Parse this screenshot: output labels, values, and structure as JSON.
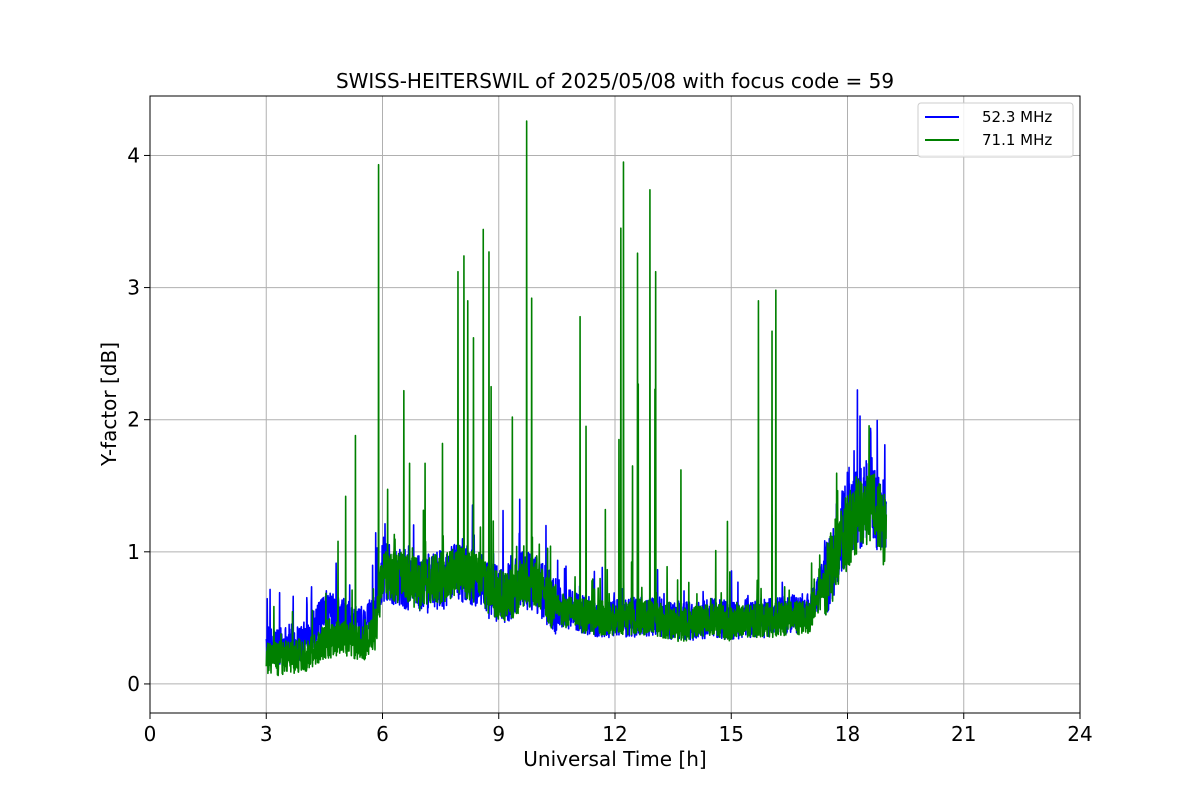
{
  "chart_data": {
    "type": "line",
    "title": "SWISS-HEITERSWIL of 2025/05/08 with focus code = 59",
    "xlabel": "Universal Time [h]",
    "ylabel": "Y-factor [dB]",
    "xlim": [
      0,
      24
    ],
    "ylim": [
      -0.22,
      4.45
    ],
    "xticks": [
      0,
      3,
      6,
      9,
      12,
      15,
      18,
      21,
      24
    ],
    "xtick_labels": [
      "0",
      "3",
      "6",
      "9",
      "12",
      "15",
      "18",
      "21",
      "24"
    ],
    "yticks": [
      0,
      1,
      2,
      3,
      4
    ],
    "ytick_labels": [
      "0",
      "1",
      "2",
      "3",
      "4"
    ],
    "grid": true,
    "legend_position": "top-right",
    "series": [
      {
        "name": "52.3 MHz",
        "color": "#0000ff",
        "x": [
          3.0,
          3.5,
          4.0,
          4.3,
          4.6,
          5.0,
          5.5,
          5.8,
          6.0,
          6.5,
          7.0,
          7.5,
          8.0,
          8.5,
          8.8,
          9.2,
          9.6,
          10.0,
          10.4,
          11.0,
          11.5,
          12.0,
          12.5,
          13.0,
          13.5,
          14.0,
          14.5,
          15.0,
          15.5,
          16.0,
          16.5,
          17.0,
          17.4,
          17.8,
          18.2,
          18.6,
          19.0
        ],
        "y": [
          0.28,
          0.3,
          0.32,
          0.45,
          0.55,
          0.5,
          0.4,
          0.55,
          0.85,
          0.8,
          0.75,
          0.78,
          0.85,
          0.8,
          0.7,
          0.68,
          0.8,
          0.75,
          0.6,
          0.55,
          0.5,
          0.5,
          0.5,
          0.52,
          0.48,
          0.48,
          0.5,
          0.48,
          0.5,
          0.5,
          0.52,
          0.55,
          0.8,
          1.1,
          1.3,
          1.4,
          1.2
        ],
        "noise": 0.15
      },
      {
        "name": "71.1 MHz",
        "color": "#008000",
        "x": [
          3.0,
          3.5,
          4.0,
          4.3,
          4.6,
          5.0,
          5.5,
          5.8,
          6.0,
          6.5,
          7.0,
          7.5,
          8.0,
          8.5,
          8.8,
          9.2,
          9.6,
          10.0,
          10.4,
          11.0,
          11.5,
          12.0,
          12.5,
          13.0,
          13.5,
          14.0,
          14.5,
          15.0,
          15.5,
          16.0,
          16.5,
          17.0,
          17.4,
          17.8,
          18.2,
          18.6,
          19.0
        ],
        "y": [
          0.18,
          0.2,
          0.22,
          0.28,
          0.32,
          0.35,
          0.3,
          0.4,
          0.85,
          0.8,
          0.75,
          0.8,
          0.85,
          0.8,
          0.7,
          0.65,
          0.75,
          0.78,
          0.58,
          0.52,
          0.5,
          0.5,
          0.5,
          0.5,
          0.45,
          0.45,
          0.5,
          0.45,
          0.48,
          0.48,
          0.5,
          0.5,
          0.75,
          1.05,
          1.25,
          1.35,
          1.15
        ],
        "noise": 0.13,
        "spikes": [
          [
            4.85,
            1.08
          ],
          [
            5.05,
            1.42
          ],
          [
            5.3,
            1.88
          ],
          [
            5.9,
            3.93
          ],
          [
            6.55,
            2.22
          ],
          [
            6.7,
            1.67
          ],
          [
            7.1,
            1.67
          ],
          [
            7.55,
            1.82
          ],
          [
            7.95,
            3.12
          ],
          [
            8.1,
            3.24
          ],
          [
            8.2,
            2.9
          ],
          [
            8.35,
            2.62
          ],
          [
            8.6,
            3.44
          ],
          [
            8.75,
            3.27
          ],
          [
            8.8,
            2.25
          ],
          [
            9.35,
            2.02
          ],
          [
            9.72,
            4.26
          ],
          [
            9.85,
            2.92
          ],
          [
            11.1,
            2.78
          ],
          [
            11.25,
            1.95
          ],
          [
            11.75,
            1.32
          ],
          [
            12.1,
            1.85
          ],
          [
            12.15,
            3.45
          ],
          [
            12.22,
            3.95
          ],
          [
            12.45,
            1.65
          ],
          [
            12.58,
            3.26
          ],
          [
            12.6,
            2.27
          ],
          [
            12.9,
            3.74
          ],
          [
            13.05,
            3.12
          ],
          [
            13.03,
            2.23
          ],
          [
            13.7,
            1.62
          ],
          [
            14.6,
            1.01
          ],
          [
            14.9,
            1.23
          ],
          [
            15.7,
            2.9
          ],
          [
            16.05,
            2.67
          ],
          [
            16.15,
            2.98
          ]
        ]
      }
    ]
  }
}
